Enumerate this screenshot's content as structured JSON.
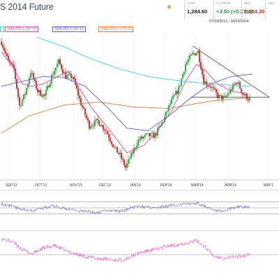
{
  "header": {
    "title": "S 2014 Future",
    "range": "07/23/2013 - 04/23/2014",
    "quote": [
      {
        "label": "LAST",
        "value": "1,284.60",
        "color": "#222222"
      },
      {
        "label": "CHANGE",
        "value": "+3.50 (+0.27%)",
        "color": "#1c9a3c"
      },
      {
        "label": "BID",
        "value": "1,284.30",
        "color": "#cc2222"
      },
      {
        "label": "ASK",
        "value": "",
        "color": "#222222"
      }
    ],
    "star_icon": "star-icon"
  },
  "legend": [
    {
      "label": "SMA (20) 1,287.58",
      "color": "#d946a0"
    },
    {
      "label": "SMA (50) 1,326.19",
      "color": "#5a5ac8"
    },
    {
      "label": "SMA (200) 1,276.67",
      "color": "#e07a3a"
    }
  ],
  "colors": {
    "up": "#1ea83c",
    "down": "#cc2222",
    "sma20": "#d946a0",
    "sma50": "#5a5ac8",
    "sma200": "#e07a3a",
    "cyan": "#3fd0dc",
    "triangle": "#333333",
    "osc1": "#6a6ad0",
    "osc2": "#e060c8"
  },
  "chart_data": [
    {
      "type": "candlestick",
      "x_axis_labels": [
        "SEP'13",
        "OCT'13",
        "NOV'13",
        "DEC'13",
        "JAN'14",
        "FEB'14",
        "MAR'14",
        "APR'14",
        "MAY'1"
      ],
      "x_range": [
        0,
        200
      ],
      "y_range": [
        1110,
        1410
      ],
      "label_positions": [
        3,
        24,
        49,
        70,
        92,
        114,
        136,
        160,
        188
      ],
      "anchors": [
        [
          0,
          1390
        ],
        [
          5,
          1350
        ],
        [
          9,
          1335
        ],
        [
          13,
          1260
        ],
        [
          17,
          1285
        ],
        [
          21,
          1330
        ],
        [
          26,
          1290
        ],
        [
          31,
          1280
        ],
        [
          36,
          1320
        ],
        [
          41,
          1350
        ],
        [
          46,
          1320
        ],
        [
          51,
          1320
        ],
        [
          57,
          1265
        ],
        [
          63,
          1220
        ],
        [
          69,
          1230
        ],
        [
          75,
          1210
        ],
        [
          81,
          1175
        ],
        [
          85,
          1160
        ],
        [
          89,
          1135
        ],
        [
          93,
          1160
        ],
        [
          98,
          1190
        ],
        [
          104,
          1200
        ],
        [
          110,
          1200
        ],
        [
          116,
          1230
        ],
        [
          121,
          1265
        ],
        [
          127,
          1295
        ],
        [
          132,
          1345
        ],
        [
          137,
          1365
        ],
        [
          141,
          1370
        ],
        [
          145,
          1310
        ],
        [
          150,
          1300
        ],
        [
          155,
          1280
        ],
        [
          160,
          1275
        ],
        [
          165,
          1295
        ],
        [
          169,
          1310
        ],
        [
          173,
          1285
        ],
        [
          177,
          1275
        ]
      ],
      "sma20_anchors": [
        [
          0,
          1370
        ],
        [
          8,
          1340
        ],
        [
          15,
          1305
        ],
        [
          22,
          1300
        ],
        [
          30,
          1305
        ],
        [
          40,
          1320
        ],
        [
          48,
          1330
        ],
        [
          55,
          1300
        ],
        [
          65,
          1255
        ],
        [
          78,
          1210
        ],
        [
          90,
          1165
        ],
        [
          102,
          1180
        ],
        [
          112,
          1210
        ],
        [
          122,
          1250
        ],
        [
          132,
          1310
        ],
        [
          140,
          1345
        ],
        [
          147,
          1330
        ],
        [
          155,
          1305
        ],
        [
          165,
          1290
        ],
        [
          177,
          1285
        ]
      ],
      "sma50_anchors": [
        [
          0,
          1300
        ],
        [
          15,
          1310
        ],
        [
          30,
          1320
        ],
        [
          45,
          1318
        ],
        [
          60,
          1300
        ],
        [
          75,
          1260
        ],
        [
          90,
          1215
        ],
        [
          105,
          1210
        ],
        [
          120,
          1240
        ],
        [
          135,
          1275
        ],
        [
          150,
          1305
        ],
        [
          165,
          1320
        ],
        [
          180,
          1325
        ]
      ],
      "sma200_anchors": [
        [
          0,
          1205
        ],
        [
          20,
          1240
        ],
        [
          45,
          1262
        ],
        [
          70,
          1268
        ],
        [
          95,
          1258
        ],
        [
          120,
          1255
        ],
        [
          150,
          1270
        ],
        [
          178,
          1277
        ]
      ],
      "cyan_anchors": [
        [
          25,
          1400
        ],
        [
          45,
          1380
        ],
        [
          65,
          1355
        ],
        [
          85,
          1335
        ],
        [
          105,
          1320
        ],
        [
          125,
          1312
        ],
        [
          145,
          1306
        ],
        [
          165,
          1302
        ],
        [
          178,
          1300
        ]
      ],
      "triangle": [
        [
          137,
          1382
        ],
        [
          192,
          1278
        ],
        [
          136,
          1278
        ]
      ]
    },
    {
      "type": "line",
      "name_hidden": true,
      "y_range": [
        0,
        100
      ],
      "levels": [
        70,
        50,
        30
      ],
      "anchors": [
        [
          0,
          62
        ],
        [
          8,
          55
        ],
        [
          15,
          45
        ],
        [
          22,
          40
        ],
        [
          30,
          50
        ],
        [
          38,
          56
        ],
        [
          46,
          48
        ],
        [
          55,
          40
        ],
        [
          62,
          38
        ],
        [
          70,
          35
        ],
        [
          78,
          42
        ],
        [
          86,
          38
        ],
        [
          92,
          50
        ],
        [
          100,
          55
        ],
        [
          110,
          50
        ],
        [
          118,
          56
        ],
        [
          126,
          60
        ],
        [
          134,
          64
        ],
        [
          140,
          66
        ],
        [
          146,
          55
        ],
        [
          152,
          42
        ],
        [
          158,
          38
        ],
        [
          164,
          48
        ],
        [
          170,
          55
        ],
        [
          177,
          52
        ]
      ]
    },
    {
      "type": "line",
      "name_hidden": true,
      "y_range": [
        0,
        100
      ],
      "levels": [
        50
      ],
      "anchors": [
        [
          0,
          88
        ],
        [
          8,
          82
        ],
        [
          15,
          62
        ],
        [
          22,
          52
        ],
        [
          30,
          66
        ],
        [
          38,
          72
        ],
        [
          46,
          60
        ],
        [
          55,
          50
        ],
        [
          62,
          44
        ],
        [
          70,
          40
        ],
        [
          78,
          38
        ],
        [
          86,
          36
        ],
        [
          92,
          44
        ],
        [
          100,
          56
        ],
        [
          110,
          62
        ],
        [
          118,
          70
        ],
        [
          126,
          74
        ],
        [
          134,
          80
        ],
        [
          140,
          84
        ],
        [
          146,
          70
        ],
        [
          152,
          46
        ],
        [
          158,
          42
        ],
        [
          164,
          44
        ],
        [
          170,
          45
        ],
        [
          177,
          48
        ]
      ]
    }
  ]
}
